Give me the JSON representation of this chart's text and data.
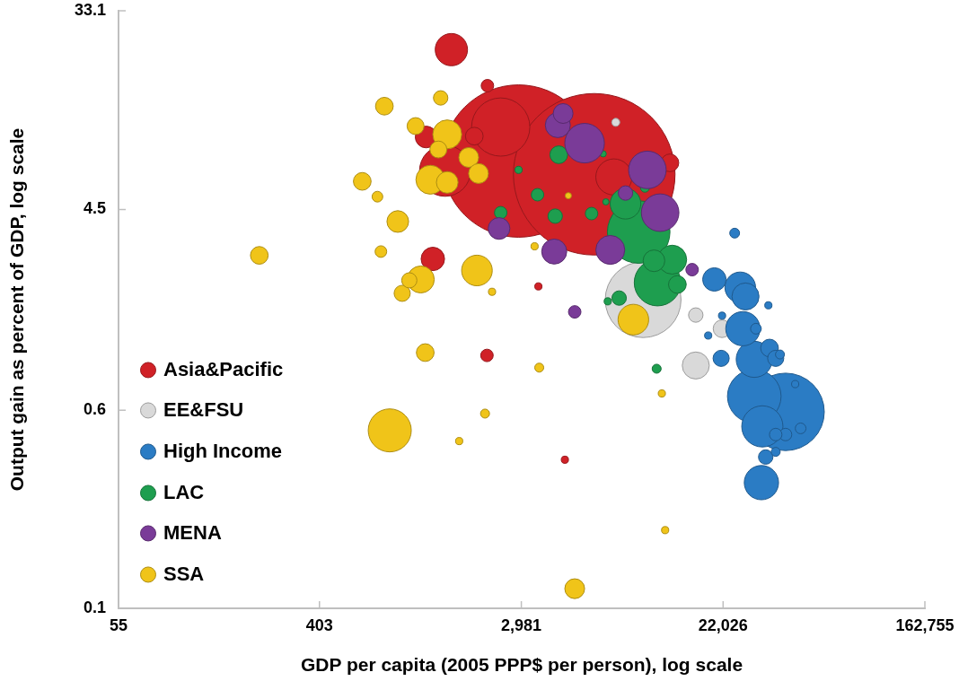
{
  "chart_data": {
    "type": "bubble",
    "xlabel": "GDP per capita (2005 PPP$ per person), log scale",
    "ylabel": "Output gain as percent of GDP, log scale",
    "log": "xy",
    "xlim": [
      55,
      162755
    ],
    "ylim": [
      0.0821,
      33.1
    ],
    "xticks": [
      55,
      403,
      {
        "value": 2981,
        "label": "2,981"
      },
      {
        "value": 22026,
        "label": "22,026"
      },
      {
        "value": 162755,
        "label": "162,755"
      }
    ],
    "yticks": [
      {
        "value": 0.0821,
        "label": "0.1"
      },
      0.6,
      4.5,
      33.1
    ],
    "legend": "bottom left",
    "marker": "circle",
    "series": [
      {
        "name": "Asia&Pacific",
        "color": "#d02127",
        "x": [
          2900,
          6140,
          2430,
          1400,
          7460,
          1490,
          1240,
          1160,
          1870,
          13000,
          2130,
          2120,
          3530,
          4590
        ],
        "values": [
          7.32,
          6.41,
          10.3,
          6.64,
          6.24,
          22.4,
          2.74,
          9.32,
          9.4,
          7.19,
          15.6,
          1.04,
          2.08,
          0.365
        ],
        "sizes": [
          0.89,
          1,
          0.13,
          0.1,
          0.05,
          0.04,
          0.021,
          0.018,
          0.012,
          0.012,
          0.006,
          0.006,
          0.002,
          0.002
        ]
      },
      {
        "name": "EE&FSU",
        "color": "#d9d9d9",
        "x": [
          9970,
          16800,
          21800,
          16800,
          7600
        ],
        "values": [
          1.82,
          0.94,
          1.36,
          1.56,
          10.8
        ],
        "sizes": [
          0.22,
          0.028,
          0.012,
          0.008,
          0.0025
        ]
      },
      {
        "name": "High Income",
        "color": "#2b7cc4",
        "x": [
          40900,
          30000,
          32500,
          30000,
          26800,
          32200,
          26100,
          27500,
          20200,
          34900,
          37100,
          21600,
          33600,
          40900,
          37100,
          30500,
          47500,
          24700,
          38700,
          37100,
          34500,
          21800,
          19000,
          45000
        ],
        "values": [
          0.59,
          0.69,
          0.51,
          1.0,
          1.36,
          0.29,
          2.06,
          1.88,
          2.23,
          1.12,
          1.01,
          1.01,
          0.375,
          0.47,
          0.47,
          1.36,
          0.5,
          3.55,
          1.05,
          0.395,
          1.72,
          1.55,
          1.27,
          0.78
        ],
        "sizes": [
          0.23,
          0.11,
          0.065,
          0.05,
          0.045,
          0.045,
          0.036,
          0.028,
          0.021,
          0.012,
          0.01,
          0.01,
          0.008,
          0.006,
          0.006,
          0.0044,
          0.0044,
          0.0037,
          0.0031,
          0.0031,
          0.002,
          0.002,
          0.002,
          0.002
        ]
      },
      {
        "name": "LAC",
        "color": "#1e9e4f",
        "x": [
          9540,
          11500,
          8370,
          13300,
          11100,
          4320,
          14000,
          4170,
          7860,
          3500,
          2430,
          5980,
          11400,
          10150,
          2900,
          7020,
          6710,
          6890
        ],
        "values": [
          3.59,
          2.16,
          4.77,
          2.72,
          2.69,
          7.8,
          2.12,
          4.21,
          1.85,
          5.22,
          4.36,
          4.32,
          0.91,
          5.6,
          6.7,
          1.79,
          7.87,
          4.86
        ],
        "sizes": [
          0.15,
          0.083,
          0.036,
          0.032,
          0.018,
          0.012,
          0.012,
          0.008,
          0.008,
          0.006,
          0.006,
          0.006,
          0.0031,
          0.0031,
          0.002,
          0.002,
          0.0015,
          0.0015
        ]
      },
      {
        "name": "MENA",
        "color": "#7a3b98",
        "x": [
          5580,
          11800,
          10400,
          7200,
          4280,
          4130,
          2390,
          4510,
          8370,
          16200,
          5060
        ],
        "values": [
          8.76,
          4.36,
          6.7,
          3.0,
          10.5,
          2.95,
          3.72,
          11.8,
          5.31,
          2.46,
          1.61
        ],
        "sizes": [
          0.06,
          0.054,
          0.054,
          0.032,
          0.024,
          0.024,
          0.018,
          0.015,
          0.008,
          0.006,
          0.006
        ]
      },
      {
        "name": "SSA",
        "color": "#f0c419",
        "x": [
          809,
          9050,
          1920,
          1430,
          1210,
          1100,
          1430,
          876,
          1770,
          1950,
          5060,
          767,
          616,
          222,
          1150,
          1045,
          1310,
          915,
          982,
          1340,
          741,
          716,
          3560,
          2080,
          2230,
          12000,
          1610,
          12400,
          3400,
          4750
        ],
        "values": [
          0.49,
          1.49,
          2.44,
          9.57,
          6.07,
          2.23,
          5.91,
          3.99,
          7.59,
          6.46,
          0.1,
          12.7,
          5.97,
          2.84,
          1.07,
          10.4,
          8.22,
          1.94,
          2.21,
          13.8,
          2.95,
          5.12,
          0.92,
          0.58,
          1.97,
          0.71,
          0.44,
          0.18,
          3.11,
          5.17
        ],
        "sizes": [
          0.071,
          0.036,
          0.036,
          0.032,
          0.032,
          0.028,
          0.018,
          0.018,
          0.015,
          0.015,
          0.015,
          0.012,
          0.012,
          0.012,
          0.012,
          0.011,
          0.011,
          0.01,
          0.0089,
          0.008,
          0.0052,
          0.0044,
          0.0031,
          0.0031,
          0.002,
          0.002,
          0.002,
          0.002,
          0.002,
          0.0015
        ]
      }
    ]
  }
}
